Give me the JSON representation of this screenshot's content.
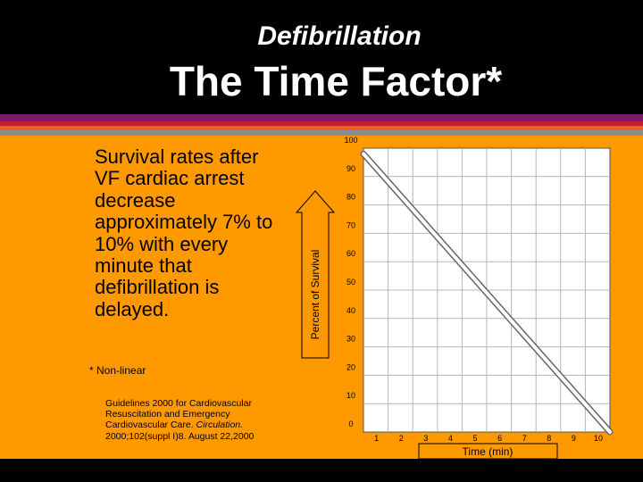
{
  "slide": {
    "subtitle": "Defibrillation",
    "title": "The Time Factor*",
    "body_text": "Survival rates after VF cardiac arrest decrease approximately 7% to 10% with every minute that defibrillation is delayed.",
    "footnote": "* Non-linear",
    "citation_text": "Guidelines 2000 for Cardiovascular Resuscitation and Emergency Cardiovascular Care.",
    "citation_journal": "Circulation.",
    "citation_ref": "2000;102(suppl I)8. August 22,2000"
  },
  "colors": {
    "background": "#000000",
    "panel": "#ff9900",
    "stripe_purple": "#7a1c6e",
    "stripe_red": "#c81d2b",
    "stripe_orange": "#e4622a",
    "stripe_gray": "#8c8c8c",
    "plot_area": "#ffffff",
    "line": "#ffffff"
  },
  "chart_data": {
    "type": "line",
    "xlabel": "Time (min)",
    "ylabel": "Percent of Survival",
    "xlim": [
      0,
      10
    ],
    "ylim": [
      0,
      100
    ],
    "x_ticks": [
      1,
      2,
      3,
      4,
      5,
      6,
      7,
      8,
      9,
      10
    ],
    "y_ticks": [
      0,
      10,
      20,
      30,
      40,
      50,
      60,
      70,
      80,
      90,
      100
    ],
    "grid": true,
    "series": [
      {
        "x": [
          0,
          10
        ],
        "values": [
          98,
          0
        ]
      }
    ]
  }
}
